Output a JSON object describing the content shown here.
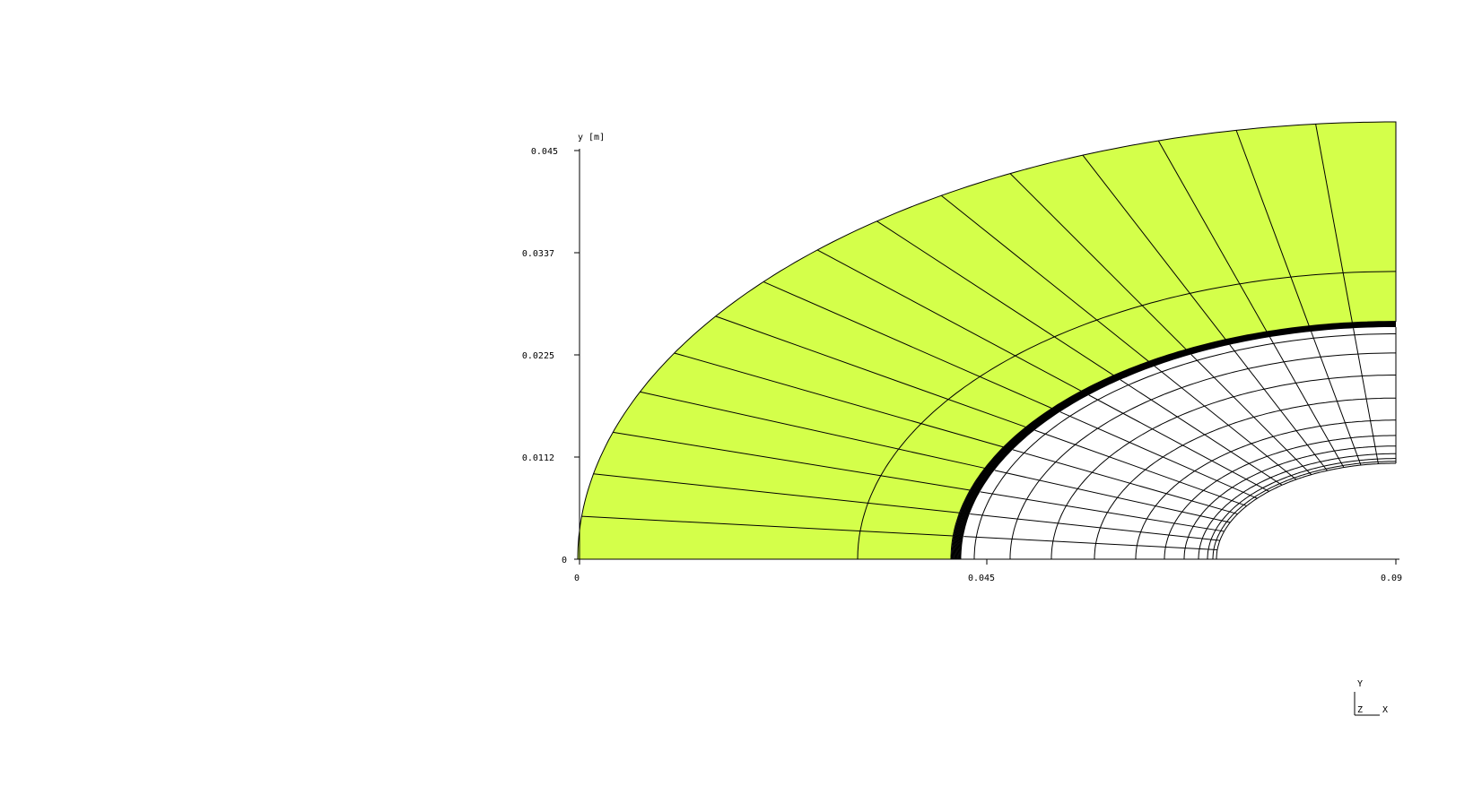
{
  "plot": {
    "y_axis_label": "y [m]",
    "y_ticks": [
      "0.045",
      "0.0337",
      "0.0225",
      "0.0112",
      "0"
    ],
    "x_ticks": [
      "0",
      "0.045",
      "0.09"
    ],
    "x_range": [
      0,
      0.09
    ],
    "y_range": [
      0,
      0.045
    ]
  },
  "mesh": {
    "fill_color": "#d4ff4a",
    "line_color": "#000000"
  },
  "triad": {
    "y_label": "Y",
    "z_label": "Z",
    "x_label": "X"
  }
}
